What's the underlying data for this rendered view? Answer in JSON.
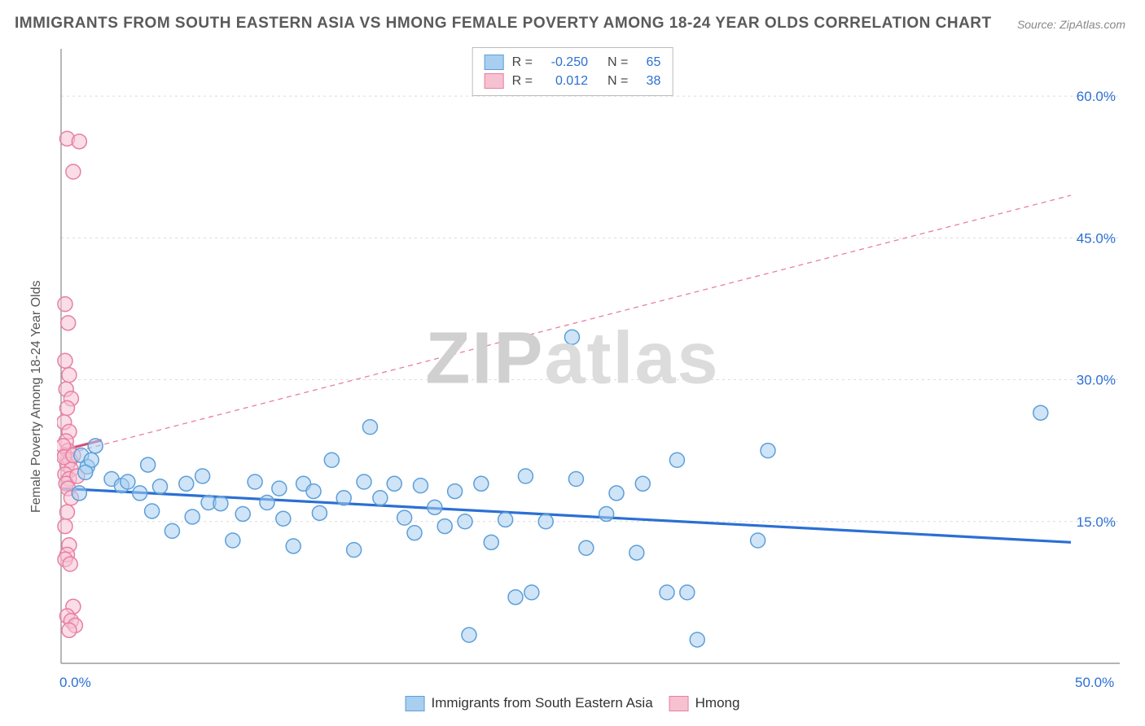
{
  "title": "IMMIGRANTS FROM SOUTH EASTERN ASIA VS HMONG FEMALE POVERTY AMONG 18-24 YEAR OLDS CORRELATION CHART",
  "source": "Source: ZipAtlas.com",
  "watermark": "ZIPatlas",
  "y_axis_label": "Female Poverty Among 18-24 Year Olds",
  "chart": {
    "type": "scatter",
    "background_color": "#ffffff",
    "grid_color": "#dcdcdc",
    "plot_border_color": "#888888",
    "xlim": [
      0,
      50
    ],
    "ylim": [
      0,
      65
    ],
    "x_ticks": [
      {
        "v": 0,
        "label": "0.0%"
      },
      {
        "v": 50,
        "label": "50.0%"
      }
    ],
    "y_ticks": [
      {
        "v": 15,
        "label": "15.0%"
      },
      {
        "v": 30,
        "label": "30.0%"
      },
      {
        "v": 45,
        "label": "45.0%"
      },
      {
        "v": 60,
        "label": "60.0%"
      }
    ],
    "marker_radius": 9,
    "marker_stroke_width": 1.5,
    "series": [
      {
        "name": "Immigrants from South Eastern Asia",
        "color_fill": "#a8cef0",
        "color_stroke": "#5d9fd8",
        "fill_opacity": 0.55,
        "R": "-0.250",
        "N": "65",
        "trend": {
          "x1": 0,
          "y1": 18.5,
          "x2": 50,
          "y2": 12.8,
          "stroke": "#2b6fd4",
          "width": 3.2,
          "dash": "none"
        },
        "points": [
          [
            1.0,
            22.0
          ],
          [
            1.3,
            20.8
          ],
          [
            1.5,
            21.5
          ],
          [
            1.7,
            23.0
          ],
          [
            0.9,
            18.0
          ],
          [
            1.2,
            20.2
          ],
          [
            2.5,
            19.5
          ],
          [
            3.0,
            18.8
          ],
          [
            3.3,
            19.2
          ],
          [
            3.9,
            18.0
          ],
          [
            4.3,
            21.0
          ],
          [
            4.5,
            16.1
          ],
          [
            4.9,
            18.7
          ],
          [
            5.5,
            14.0
          ],
          [
            6.2,
            19.0
          ],
          [
            6.5,
            15.5
          ],
          [
            7.0,
            19.8
          ],
          [
            7.3,
            17.0
          ],
          [
            7.9,
            16.9
          ],
          [
            8.5,
            13.0
          ],
          [
            9.0,
            15.8
          ],
          [
            9.6,
            19.2
          ],
          [
            10.2,
            17.0
          ],
          [
            10.8,
            18.5
          ],
          [
            11.0,
            15.3
          ],
          [
            11.5,
            12.4
          ],
          [
            12.0,
            19.0
          ],
          [
            12.5,
            18.2
          ],
          [
            12.8,
            15.9
          ],
          [
            13.4,
            21.5
          ],
          [
            14.0,
            17.5
          ],
          [
            14.5,
            12.0
          ],
          [
            15.0,
            19.2
          ],
          [
            15.3,
            25.0
          ],
          [
            15.8,
            17.5
          ],
          [
            16.5,
            19.0
          ],
          [
            17.0,
            15.4
          ],
          [
            17.5,
            13.8
          ],
          [
            17.8,
            18.8
          ],
          [
            18.5,
            16.5
          ],
          [
            19.0,
            14.5
          ],
          [
            19.5,
            18.2
          ],
          [
            20.0,
            15.0
          ],
          [
            20.2,
            3.0
          ],
          [
            20.8,
            19.0
          ],
          [
            21.3,
            12.8
          ],
          [
            22.0,
            15.2
          ],
          [
            22.5,
            7.0
          ],
          [
            23.0,
            19.8
          ],
          [
            23.3,
            7.5
          ],
          [
            24.0,
            15.0
          ],
          [
            25.3,
            34.5
          ],
          [
            25.5,
            19.5
          ],
          [
            26.0,
            12.2
          ],
          [
            27.0,
            15.8
          ],
          [
            27.5,
            18.0
          ],
          [
            28.5,
            11.7
          ],
          [
            30.0,
            7.5
          ],
          [
            30.5,
            21.5
          ],
          [
            31.0,
            7.5
          ],
          [
            31.5,
            2.5
          ],
          [
            34.5,
            13.0
          ],
          [
            35.0,
            22.5
          ],
          [
            48.5,
            26.5
          ],
          [
            28.8,
            19.0
          ]
        ]
      },
      {
        "name": "Hmong",
        "color_fill": "#f6c1d1",
        "color_stroke": "#e87fa3",
        "fill_opacity": 0.55,
        "R": "0.012",
        "N": "38",
        "trend": {
          "x1": 0,
          "y1": 22.0,
          "x2": 50,
          "y2": 49.5,
          "stroke": "#e87fa3",
          "width": 1.3,
          "dash": "6,5"
        },
        "trend_solid": {
          "x1": 0,
          "y1": 22.5,
          "x2": 2.0,
          "y2": 23.6,
          "stroke": "#d64d7a",
          "width": 3
        },
        "points": [
          [
            0.3,
            55.5
          ],
          [
            0.9,
            55.2
          ],
          [
            0.6,
            52.0
          ],
          [
            0.2,
            38.0
          ],
          [
            0.35,
            36.0
          ],
          [
            0.2,
            32.0
          ],
          [
            0.4,
            30.5
          ],
          [
            0.25,
            29.0
          ],
          [
            0.5,
            28.0
          ],
          [
            0.3,
            27.0
          ],
          [
            0.15,
            25.5
          ],
          [
            0.4,
            24.5
          ],
          [
            0.25,
            23.5
          ],
          [
            0.35,
            22.5
          ],
          [
            0.2,
            22.0
          ],
          [
            0.45,
            21.5
          ],
          [
            0.3,
            21.0
          ],
          [
            0.5,
            20.5
          ],
          [
            0.2,
            20.0
          ],
          [
            0.4,
            19.5
          ],
          [
            0.25,
            19.0
          ],
          [
            0.35,
            18.5
          ],
          [
            0.5,
            17.5
          ],
          [
            0.3,
            16.0
          ],
          [
            0.2,
            14.5
          ],
          [
            0.4,
            12.5
          ],
          [
            0.3,
            11.5
          ],
          [
            0.2,
            11.0
          ],
          [
            0.45,
            10.5
          ],
          [
            0.6,
            6.0
          ],
          [
            0.3,
            5.0
          ],
          [
            0.5,
            4.5
          ],
          [
            0.7,
            4.0
          ],
          [
            0.4,
            3.5
          ],
          [
            0.1,
            23.0
          ],
          [
            0.15,
            21.8
          ],
          [
            0.6,
            22.0
          ],
          [
            0.8,
            19.8
          ]
        ]
      }
    ]
  },
  "legend_bottom": [
    {
      "label": "Immigrants from South Eastern Asia",
      "fill": "#a8cef0",
      "stroke": "#5d9fd8"
    },
    {
      "label": "Hmong",
      "fill": "#f6c1d1",
      "stroke": "#e87fa3"
    }
  ]
}
